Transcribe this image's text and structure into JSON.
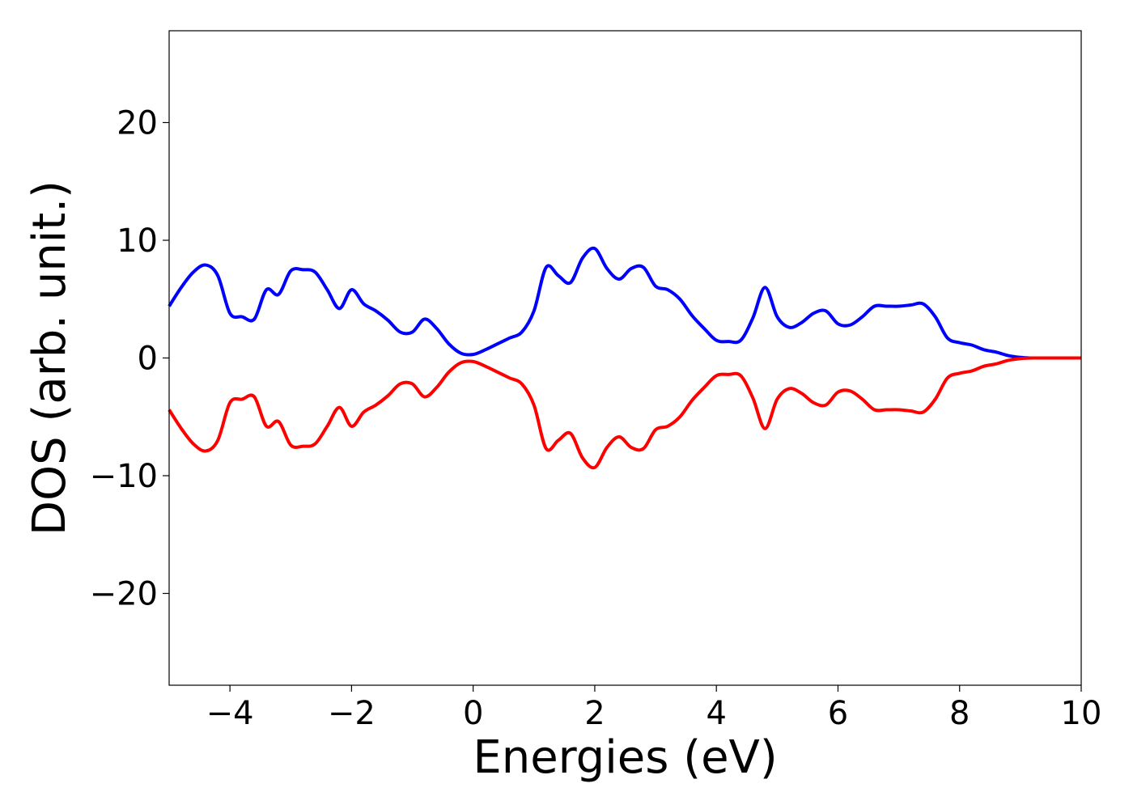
{
  "chart_data": {
    "type": "line",
    "title": "",
    "xlabel": "Energies (eV)",
    "ylabel": "DOS (arb. unit.)",
    "xlim": [
      -5,
      10
    ],
    "ylim": [
      -27.8,
      27.8
    ],
    "xticks": [
      -4,
      -2,
      0,
      2,
      4,
      6,
      8,
      10
    ],
    "xtick_labels": [
      "−4",
      "−2",
      "0",
      "2",
      "4",
      "6",
      "8",
      "10"
    ],
    "yticks": [
      -20,
      -10,
      0,
      10,
      20
    ],
    "ytick_labels": [
      "−20",
      "−10",
      "0",
      "10",
      "20"
    ],
    "grid": false,
    "legend": "none",
    "series": [
      {
        "color": "#0000ff",
        "x": [
          -5.0,
          -4.8,
          -4.6,
          -4.4,
          -4.2,
          -4.0,
          -3.8,
          -3.6,
          -3.4,
          -3.2,
          -3.0,
          -2.8,
          -2.6,
          -2.4,
          -2.2,
          -2.0,
          -1.8,
          -1.6,
          -1.4,
          -1.2,
          -1.0,
          -0.8,
          -0.6,
          -0.4,
          -0.2,
          0.0,
          0.2,
          0.4,
          0.6,
          0.8,
          1.0,
          1.2,
          1.4,
          1.6,
          1.8,
          2.0,
          2.2,
          2.4,
          2.6,
          2.8,
          3.0,
          3.2,
          3.4,
          3.6,
          3.8,
          4.0,
          4.2,
          4.4,
          4.6,
          4.8,
          5.0,
          5.2,
          5.4,
          5.6,
          5.8,
          6.0,
          6.2,
          6.4,
          6.6,
          6.8,
          7.0,
          7.2,
          7.4,
          7.6,
          7.8,
          8.0,
          8.2,
          8.4,
          8.6,
          8.8,
          9.0,
          9.2,
          9.5,
          10.0
        ],
        "values": [
          4.4,
          6.0,
          7.3,
          7.9,
          7.0,
          3.8,
          3.5,
          3.3,
          5.8,
          5.4,
          7.4,
          7.5,
          7.3,
          5.8,
          4.2,
          5.8,
          4.6,
          4.0,
          3.2,
          2.2,
          2.2,
          3.3,
          2.5,
          1.2,
          0.4,
          0.3,
          0.7,
          1.2,
          1.7,
          2.2,
          4.0,
          7.7,
          7.0,
          6.4,
          8.5,
          9.3,
          7.6,
          6.7,
          7.6,
          7.7,
          6.1,
          5.8,
          5.0,
          3.6,
          2.5,
          1.5,
          1.4,
          1.5,
          3.4,
          6.0,
          3.5,
          2.6,
          3.0,
          3.8,
          4.0,
          2.9,
          2.8,
          3.5,
          4.4,
          4.4,
          4.4,
          4.5,
          4.6,
          3.5,
          1.7,
          1.3,
          1.1,
          0.7,
          0.5,
          0.2,
          0.05,
          0.0,
          0.0,
          0.0
        ]
      },
      {
        "color": "#ff0000",
        "x": [
          -5.0,
          -4.8,
          -4.6,
          -4.4,
          -4.2,
          -4.0,
          -3.8,
          -3.6,
          -3.4,
          -3.2,
          -3.0,
          -2.8,
          -2.6,
          -2.4,
          -2.2,
          -2.0,
          -1.8,
          -1.6,
          -1.4,
          -1.2,
          -1.0,
          -0.8,
          -0.6,
          -0.4,
          -0.2,
          0.0,
          0.2,
          0.4,
          0.6,
          0.8,
          1.0,
          1.2,
          1.4,
          1.6,
          1.8,
          2.0,
          2.2,
          2.4,
          2.6,
          2.8,
          3.0,
          3.2,
          3.4,
          3.6,
          3.8,
          4.0,
          4.2,
          4.4,
          4.6,
          4.8,
          5.0,
          5.2,
          5.4,
          5.6,
          5.8,
          6.0,
          6.2,
          6.4,
          6.6,
          6.8,
          7.0,
          7.2,
          7.4,
          7.6,
          7.8,
          8.0,
          8.2,
          8.4,
          8.6,
          8.8,
          9.0,
          9.2,
          9.5,
          10.0
        ],
        "values": [
          -4.4,
          -6.0,
          -7.3,
          -7.9,
          -7.0,
          -3.8,
          -3.5,
          -3.3,
          -5.8,
          -5.4,
          -7.4,
          -7.5,
          -7.3,
          -5.8,
          -4.2,
          -5.8,
          -4.6,
          -4.0,
          -3.2,
          -2.2,
          -2.2,
          -3.3,
          -2.5,
          -1.2,
          -0.4,
          -0.3,
          -0.7,
          -1.2,
          -1.7,
          -2.2,
          -4.0,
          -7.7,
          -7.0,
          -6.4,
          -8.5,
          -9.3,
          -7.6,
          -6.7,
          -7.6,
          -7.7,
          -6.1,
          -5.8,
          -5.0,
          -3.6,
          -2.5,
          -1.5,
          -1.4,
          -1.5,
          -3.4,
          -6.0,
          -3.5,
          -2.6,
          -3.0,
          -3.8,
          -4.0,
          -2.9,
          -2.8,
          -3.5,
          -4.4,
          -4.4,
          -4.4,
          -4.5,
          -4.6,
          -3.5,
          -1.7,
          -1.3,
          -1.1,
          -0.7,
          -0.5,
          -0.2,
          -0.05,
          0.0,
          0.0,
          0.0
        ]
      }
    ]
  }
}
